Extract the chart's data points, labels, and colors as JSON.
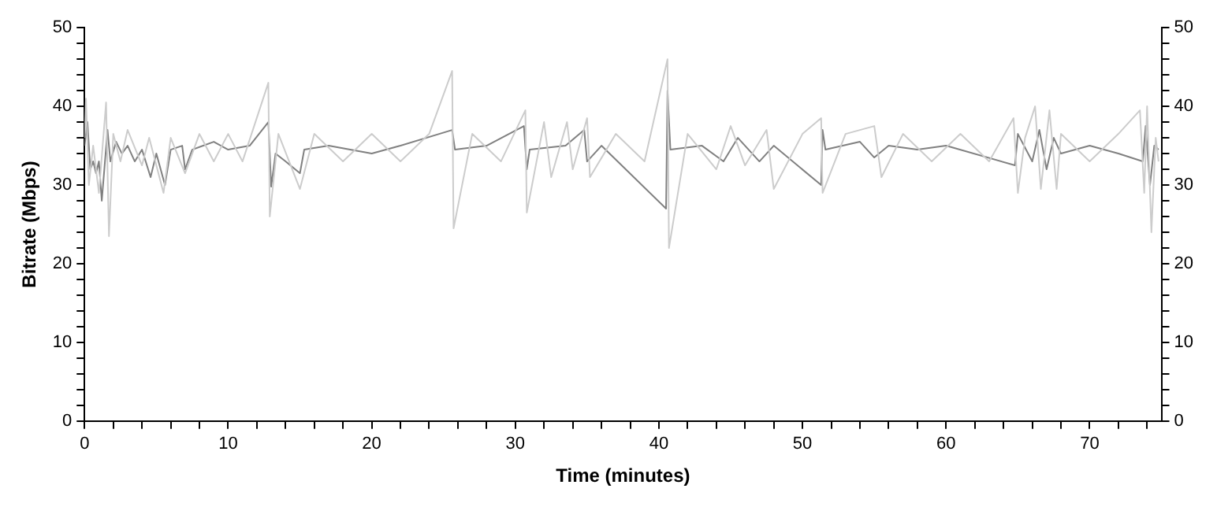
{
  "chart_data": {
    "type": "line",
    "xlabel": "Time (minutes)",
    "ylabel": "Bitrate (Mbps)",
    "grid": false,
    "legend": false,
    "marker": "none",
    "line_style": "solid",
    "xlim": [
      0,
      75
    ],
    "ylim": [
      0,
      50
    ],
    "y2lim": [
      0,
      50
    ],
    "xticks": [
      0,
      {
        "value": 2,
        "label": null
      },
      {
        "value": 4,
        "label": null
      },
      {
        "value": 6,
        "label": null
      },
      {
        "value": 8,
        "label": null
      },
      10,
      {
        "value": 12,
        "label": null
      },
      {
        "value": 14,
        "label": null
      },
      {
        "value": 16,
        "label": null
      },
      {
        "value": 18,
        "label": null
      },
      20,
      {
        "value": 22,
        "label": null
      },
      {
        "value": 24,
        "label": null
      },
      {
        "value": 26,
        "label": null
      },
      {
        "value": 28,
        "label": null
      },
      30,
      {
        "value": 32,
        "label": null
      },
      {
        "value": 34,
        "label": null
      },
      {
        "value": 36,
        "label": null
      },
      {
        "value": 38,
        "label": null
      },
      40,
      {
        "value": 42,
        "label": null
      },
      {
        "value": 44,
        "label": null
      },
      {
        "value": 46,
        "label": null
      },
      {
        "value": 48,
        "label": null
      },
      50,
      {
        "value": 52,
        "label": null
      },
      {
        "value": 54,
        "label": null
      },
      {
        "value": 56,
        "label": null
      },
      {
        "value": 58,
        "label": null
      },
      60,
      {
        "value": 62,
        "label": null
      },
      {
        "value": 64,
        "label": null
      },
      {
        "value": 66,
        "label": null
      },
      {
        "value": 68,
        "label": null
      },
      70,
      {
        "value": 72,
        "label": null
      },
      {
        "value": 74,
        "label": null
      }
    ],
    "yticks": [
      0,
      {
        "value": 2,
        "label": null
      },
      {
        "value": 4,
        "label": null
      },
      {
        "value": 6,
        "label": null
      },
      {
        "value": 8,
        "label": null
      },
      10,
      {
        "value": 12,
        "label": null
      },
      {
        "value": 14,
        "label": null
      },
      {
        "value": 16,
        "label": null
      },
      {
        "value": 18,
        "label": null
      },
      20,
      {
        "value": 22,
        "label": null
      },
      {
        "value": 24,
        "label": null
      },
      {
        "value": 26,
        "label": null
      },
      {
        "value": 28,
        "label": null
      },
      30,
      {
        "value": 32,
        "label": null
      },
      {
        "value": 34,
        "label": null
      },
      {
        "value": 36,
        "label": null
      },
      {
        "value": 38,
        "label": null
      },
      40,
      {
        "value": 42,
        "label": null
      },
      {
        "value": 44,
        "label": null
      },
      {
        "value": 46,
        "label": null
      },
      {
        "value": 48,
        "label": null
      },
      50
    ],
    "y2ticks": [
      0,
      {
        "value": 2,
        "label": null
      },
      {
        "value": 4,
        "label": null
      },
      {
        "value": 6,
        "label": null
      },
      {
        "value": 8,
        "label": null
      },
      10,
      {
        "value": 12,
        "label": null
      },
      {
        "value": 14,
        "label": null
      },
      {
        "value": 16,
        "label": null
      },
      {
        "value": 18,
        "label": null
      },
      20,
      {
        "value": 22,
        "label": null
      },
      {
        "value": 24,
        "label": null
      },
      {
        "value": 26,
        "label": null
      },
      {
        "value": 28,
        "label": null
      },
      30,
      {
        "value": 32,
        "label": null
      },
      {
        "value": 34,
        "label": null
      },
      {
        "value": 36,
        "label": null
      },
      {
        "value": 38,
        "label": null
      },
      40,
      {
        "value": 42,
        "label": null
      },
      {
        "value": 44,
        "label": null
      },
      {
        "value": 46,
        "label": null
      },
      {
        "value": 48,
        "label": null
      },
      50
    ],
    "series": [
      {
        "color": "#cccccc",
        "x": [
          0,
          0.1,
          0.3,
          0.6,
          1.0,
          1.5,
          1.7,
          2,
          2.5,
          3,
          4,
          4.5,
          5.5,
          6,
          7,
          8,
          9,
          10,
          11,
          12.8,
          12.9,
          13.5,
          15,
          16,
          18,
          20,
          22,
          24,
          25.6,
          25.7,
          27,
          29,
          30.7,
          30.8,
          32,
          32.5,
          33.6,
          34,
          35,
          35.2,
          37,
          39,
          40.6,
          40.7,
          42,
          44,
          45,
          46,
          47.5,
          48,
          50,
          51.3,
          51.4,
          53,
          55,
          55.5,
          57,
          59,
          61,
          63,
          64.7,
          65,
          65.5,
          66.2,
          66.6,
          67.2,
          67.7,
          68,
          70,
          72,
          73.5,
          73.8,
          74,
          74.3,
          74.6,
          74.8
        ],
        "values": [
          36,
          41,
          30,
          35,
          29,
          40.5,
          23.5,
          36.5,
          33,
          37,
          32.5,
          36,
          29,
          36,
          31.5,
          36.5,
          33,
          36.5,
          33,
          43,
          26,
          36.5,
          29.5,
          36.5,
          33,
          36.5,
          33,
          36.5,
          44.5,
          24.5,
          36.5,
          33,
          39.5,
          26.5,
          38,
          31,
          38,
          32,
          38.5,
          31,
          36.5,
          33,
          46,
          22,
          36.5,
          32,
          37.5,
          32.5,
          37,
          29.5,
          36.5,
          38.5,
          29,
          36.5,
          37.5,
          31,
          36.5,
          33,
          36.5,
          33,
          38.5,
          29,
          36,
          40,
          29.5,
          39.5,
          29.5,
          36.5,
          33,
          36.5,
          39.5,
          29,
          40,
          24,
          36,
          33
        ]
      },
      {
        "color": "#808080",
        "x": [
          0,
          0.2,
          0.4,
          0.6,
          0.8,
          1.0,
          1.2,
          1.4,
          1.6,
          1.8,
          2.2,
          2.6,
          3,
          3.5,
          4,
          4.6,
          5,
          5.6,
          6,
          6.8,
          7,
          7.5,
          9,
          10,
          11.5,
          12.8,
          13,
          13.3,
          14,
          15,
          15.3,
          17,
          20,
          22,
          25.6,
          25.8,
          28,
          30.6,
          30.8,
          31,
          33.5,
          34.8,
          35,
          36,
          40.5,
          40.6,
          40.8,
          43,
          44.5,
          45.5,
          47,
          48,
          51.3,
          51.4,
          51.6,
          54,
          55,
          56,
          58,
          60,
          64.8,
          65,
          66,
          66.5,
          67,
          67.5,
          68,
          70,
          72,
          73.7,
          73.9,
          74.2,
          74.5,
          74.8
        ],
        "values": [
          35,
          38,
          32,
          33,
          31.5,
          33,
          28,
          32.5,
          37,
          33,
          35.5,
          34,
          35,
          33,
          34.5,
          31,
          34,
          30,
          34.5,
          35,
          32,
          34.5,
          35.5,
          34.5,
          35,
          38,
          29.8,
          34,
          33,
          31.5,
          34.5,
          35,
          34,
          35,
          37,
          34.5,
          35,
          37.5,
          32,
          34.5,
          35,
          37,
          33,
          35,
          27,
          42,
          34.5,
          35,
          33,
          36,
          33,
          35,
          30,
          37,
          34.5,
          35.5,
          33.5,
          35,
          34.5,
          35,
          32.5,
          36.5,
          33,
          37,
          32,
          36,
          34,
          35,
          34,
          33,
          37.5,
          30,
          35,
          34.5
        ]
      }
    ]
  }
}
